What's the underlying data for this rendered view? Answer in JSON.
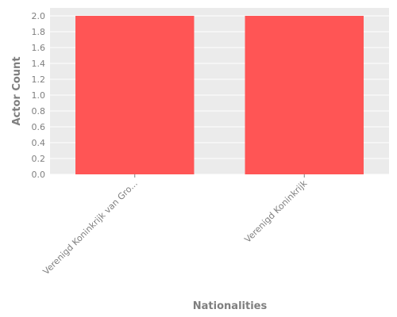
{
  "chart_data": {
    "type": "bar",
    "categories": [
      "Verenigd Koninkrijk van Gro...",
      "Verenigd Koninkrijk"
    ],
    "values": [
      2.0,
      2.0
    ],
    "xlabel": "Nationalities",
    "ylabel": "Actor Count",
    "ylim": [
      0,
      2.0
    ],
    "yticks": [
      "0.0",
      "0.2",
      "0.4",
      "0.6",
      "0.8",
      "1.0",
      "1.2",
      "1.4",
      "1.6",
      "1.8",
      "2.0"
    ],
    "grid": true,
    "colors": {
      "bar": "#ff5555",
      "plot_background": "#ebebeb",
      "grid": "#ffffff",
      "text": "#7f7f7f"
    }
  }
}
